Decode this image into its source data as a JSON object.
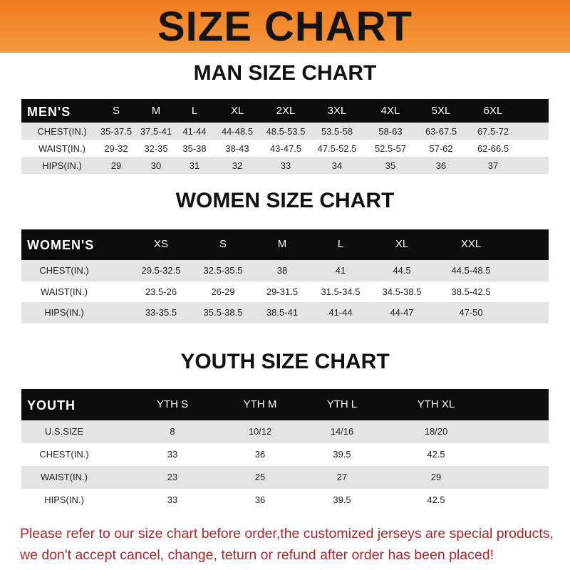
{
  "title": "SIZE CHART",
  "men": {
    "title": "MAN SIZE CHART",
    "headers": [
      "MEN'S",
      "S",
      "M",
      "L",
      "XL",
      "2XL",
      "3XL",
      "4XL",
      "5XL",
      "6XL"
    ],
    "rows": [
      [
        "CHEST(IN.)",
        "35-37.5",
        "37.5-41",
        "41-44",
        "44-48.5",
        "48.5-53.5",
        "53.5-58",
        "58-63",
        "63-67.5",
        "67.5-72"
      ],
      [
        "WAIST(IN.)",
        "29-32",
        "32-35",
        "35-38",
        "38-43",
        "43-47.5",
        "47.5-52.5",
        "52.5-57",
        "57-62",
        "62-66.5"
      ],
      [
        "HIPS(IN.)",
        "29",
        "30",
        "31",
        "32",
        "33",
        "34",
        "35",
        "36",
        "37"
      ]
    ]
  },
  "women": {
    "title": "WOMEN SIZE CHART",
    "headers": [
      "WOMEN'S",
      "XS",
      "S",
      "M",
      "L",
      "XL",
      "XXL"
    ],
    "rows": [
      [
        "CHEST(IN.)",
        "29.5-32.5",
        "32.5-35.5",
        "38",
        "41",
        "44.5",
        "44.5-48.5"
      ],
      [
        "WAIST(IN.)",
        "23.5-26",
        "26-29",
        "29-31.5",
        "31.5-34.5",
        "34.5-38.5",
        "38.5-42.5"
      ],
      [
        "HIPS(IN.)",
        "33-35.5",
        "35.5-38.5",
        "38.5-41",
        "41-44",
        "44-47",
        "47-50"
      ]
    ]
  },
  "youth": {
    "title": "YOUTH SIZE CHART",
    "headers": [
      "YOUTH",
      "YTH S",
      "YTH M",
      "YTH L",
      "YTH XL"
    ],
    "rows": [
      [
        "U.S.SIZE",
        "8",
        "10/12",
        "14/16",
        "18/20"
      ],
      [
        "CHEST(IN.)",
        "33",
        "36",
        "39.5",
        "42.5"
      ],
      [
        "WAIST(IN.)",
        "23",
        "25",
        "27",
        "29"
      ],
      [
        "HIPS(IN.)",
        "33",
        "36",
        "39.5",
        "42.5"
      ]
    ]
  },
  "footer": {
    "line1": "Please refer to our size chart before order,the customized jerseys are special products,",
    "line2": "we don't accept cancel, change, teturn or refund after order has been placed!"
  },
  "colors": {
    "banner": "#f07a1e",
    "header_row": "#0c0c0c",
    "stripe": "#e4e4e4",
    "notice": "#b8232a"
  }
}
